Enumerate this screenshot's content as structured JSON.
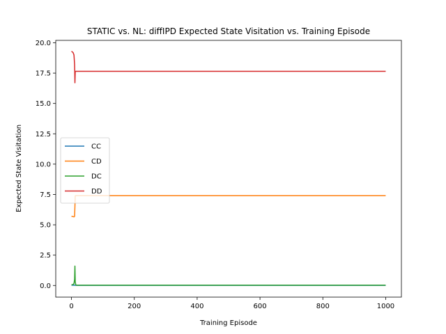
{
  "chart_data": {
    "type": "line",
    "title": "STATIC vs. NL: diffIPD Expected State Visitation vs. Training Episode",
    "xlabel": "Training Episode",
    "ylabel": "Expected State Visitation",
    "xlim": [
      -50,
      1050
    ],
    "ylim": [
      -0.96,
      20.2
    ],
    "xticks": [
      0,
      200,
      400,
      600,
      800,
      1000
    ],
    "yticks": [
      0.0,
      2.5,
      5.0,
      7.5,
      10.0,
      12.5,
      15.0,
      17.5,
      20.0
    ],
    "xtick_labels": [
      "0",
      "200",
      "400",
      "600",
      "800",
      "1000"
    ],
    "ytick_labels": [
      "0.0",
      "2.5",
      "5.0",
      "7.5",
      "10.0",
      "12.5",
      "15.0",
      "17.5",
      "20.0"
    ],
    "grid": false,
    "legend_position": "center-left",
    "series": [
      {
        "name": "CC",
        "color": "#1f77b4",
        "x": [
          0,
          5,
          10,
          12,
          15,
          20,
          1000
        ],
        "y": [
          0.02,
          0.02,
          0.03,
          0.02,
          0.01,
          0.01,
          0.01
        ]
      },
      {
        "name": "CD",
        "color": "#ff7f0e",
        "x": [
          0,
          5,
          8,
          10,
          11,
          12,
          15,
          1000
        ],
        "y": [
          5.7,
          5.68,
          5.65,
          5.7,
          6.5,
          7.4,
          7.4,
          7.4
        ]
      },
      {
        "name": "DC",
        "color": "#2ca02c",
        "x": [
          0,
          5,
          8,
          10,
          11,
          12,
          14,
          20,
          1000
        ],
        "y": [
          0.05,
          0.08,
          0.15,
          0.5,
          1.6,
          0.3,
          0.03,
          0.02,
          0.02
        ]
      },
      {
        "name": "DD",
        "color": "#d62728",
        "x": [
          0,
          5,
          8,
          10,
          11,
          12,
          13,
          15,
          1000
        ],
        "y": [
          19.3,
          19.2,
          19.0,
          18.2,
          16.7,
          17.6,
          17.65,
          17.65,
          17.65
        ]
      }
    ]
  }
}
